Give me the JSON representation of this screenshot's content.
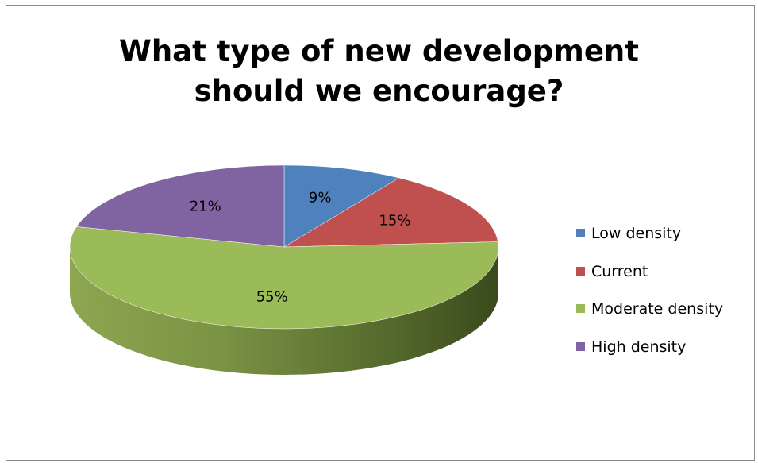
{
  "chart": {
    "title_lines": [
      "What type of new development",
      "should we encourage?"
    ]
  },
  "chart_data": {
    "type": "pie",
    "title": "What type of new development should we encourage?",
    "categories": [
      "Low density",
      "Current",
      "Moderate density",
      "High density"
    ],
    "values": [
      9,
      15,
      55,
      21
    ],
    "labels": [
      "9%",
      "15%",
      "55%",
      "21%"
    ],
    "colors": [
      "#4f81bd",
      "#c0504d",
      "#9bbb59",
      "#8064a2"
    ],
    "legend_position": "right"
  }
}
